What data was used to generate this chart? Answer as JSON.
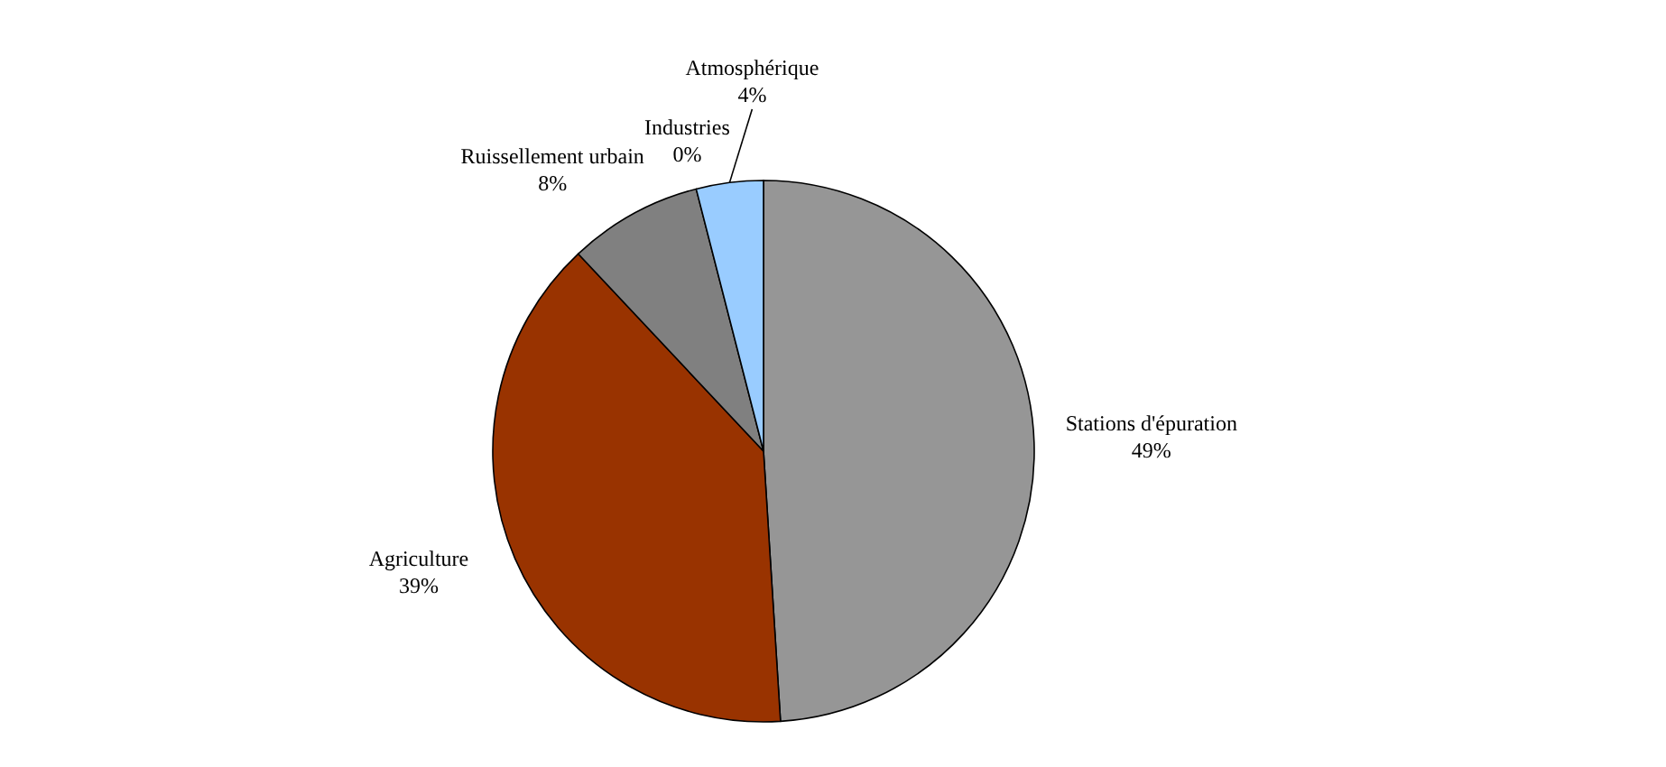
{
  "chart_data": {
    "type": "pie",
    "categories": [
      "Stations d'épuration",
      "Agriculture",
      "Ruissellement urbain",
      "Industries",
      "Atmosphérique"
    ],
    "values": [
      49,
      39,
      8,
      0,
      4
    ],
    "colors": [
      "#969696",
      "#993300",
      "#808080",
      "#333333",
      "#99ccff"
    ],
    "value_labels": [
      "49%",
      "39%",
      "8%",
      "0%",
      "4%"
    ]
  }
}
